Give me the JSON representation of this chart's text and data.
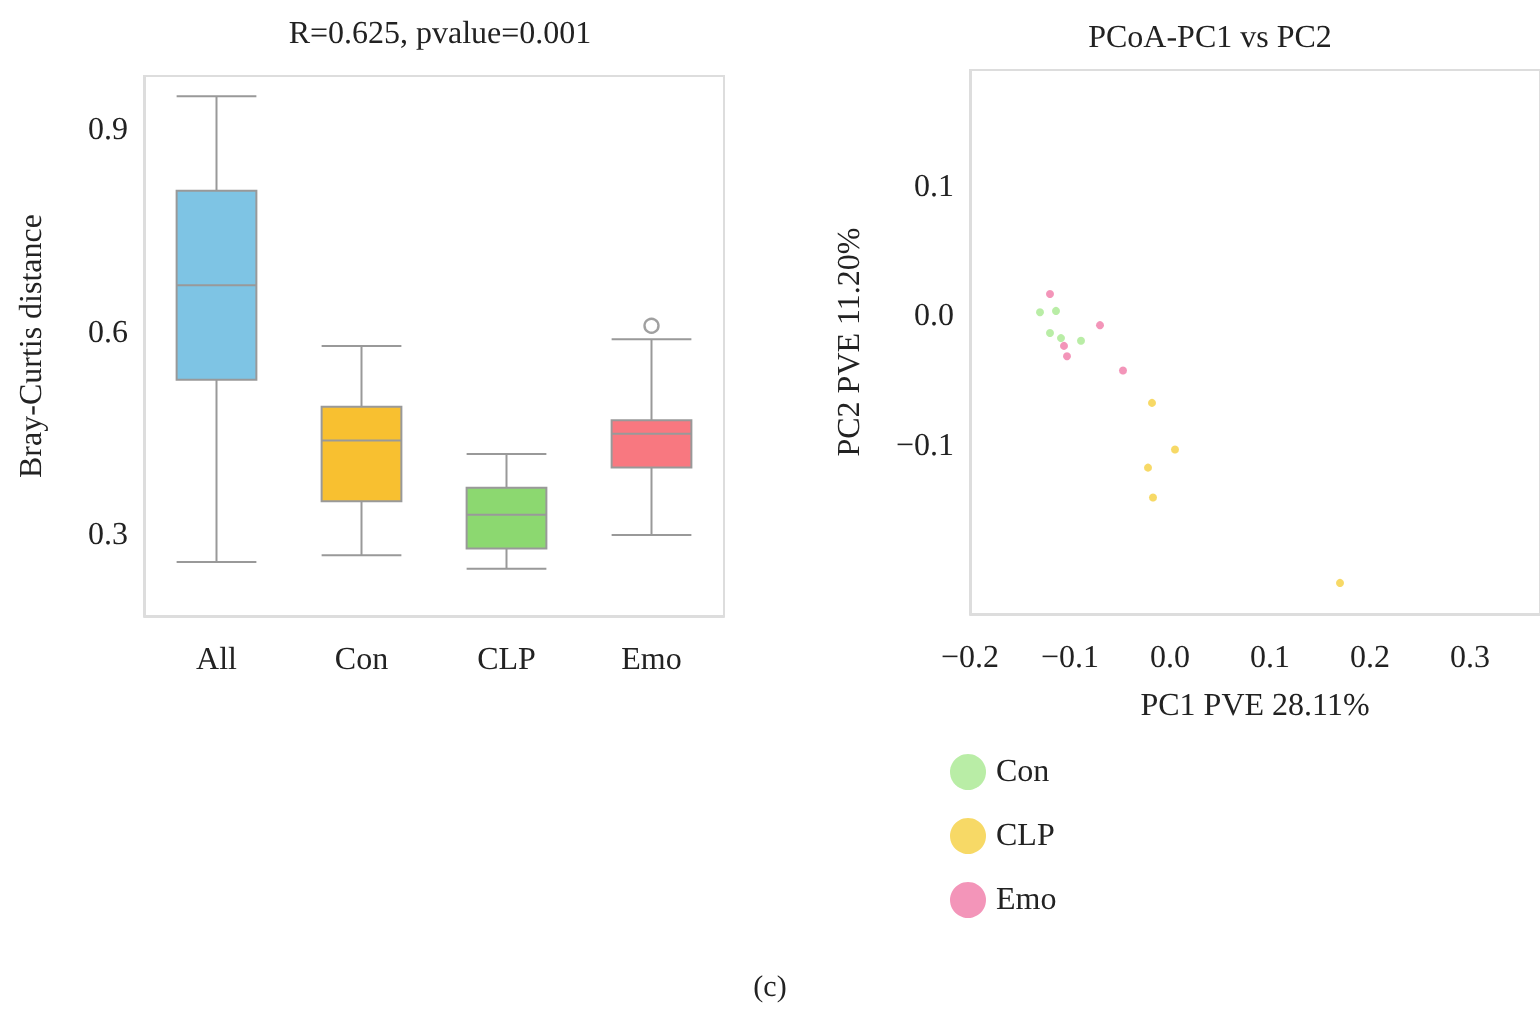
{
  "chart_data": [
    {
      "type": "box",
      "title": "R=0.625, pvalue=0.001",
      "ylabel": "Bray-Curtis distance",
      "categories": [
        "All",
        "Con",
        "CLP",
        "Emo"
      ],
      "colors": [
        "#7ec4e4",
        "#f8c030",
        "#8cd870",
        "#f87880"
      ],
      "boxes": [
        {
          "low": 0.26,
          "q1": 0.53,
          "median": 0.67,
          "q3": 0.81,
          "high": 0.95
        },
        {
          "low": 0.27,
          "q1": 0.35,
          "median": 0.44,
          "q3": 0.49,
          "high": 0.58
        },
        {
          "low": 0.25,
          "q1": 0.28,
          "median": 0.33,
          "q3": 0.37,
          "high": 0.42
        },
        {
          "low": 0.3,
          "q1": 0.4,
          "median": 0.45,
          "q3": 0.47,
          "high": 0.59,
          "outliers": [
            0.61
          ]
        }
      ],
      "ylim": [
        0.18,
        0.98
      ],
      "yticks": [
        0.3,
        0.6,
        0.9
      ],
      "grid": false
    },
    {
      "type": "scatter",
      "title": "PCoA-PC1 vs PC2",
      "xlabel": "PC1 PVE 28.11%",
      "ylabel": "PC2 PVE 11.20%",
      "series": [
        {
          "name": "Con",
          "color": "#a8e890",
          "x": [
            -0.13,
            -0.114,
            -0.12,
            -0.109,
            -0.089
          ],
          "values": [
            0.003,
            0.004,
            -0.013,
            -0.017,
            -0.019
          ]
        },
        {
          "name": "CLP",
          "color": "#f5d040",
          "x": [
            -0.018,
            0.005,
            -0.022,
            -0.017,
            0.17
          ],
          "values": [
            -0.067,
            -0.103,
            -0.117,
            -0.14,
            -0.206
          ]
        },
        {
          "name": "Emo",
          "color": "#f07aa8",
          "x": [
            -0.12,
            -0.106,
            -0.103,
            -0.07,
            -0.047
          ],
          "values": [
            0.017,
            -0.023,
            -0.031,
            -0.007,
            -0.042
          ]
        }
      ],
      "xlim": [
        -0.2,
        0.37
      ],
      "ylim": [
        -0.23,
        0.19
      ],
      "xticks": [
        {
          "value": -0.2,
          "label": "−0.2"
        },
        {
          "value": -0.1,
          "label": "−0.1"
        },
        {
          "value": 0,
          "label": "0.0"
        },
        0.1,
        0.2,
        0.3
      ],
      "yticks": [
        {
          "value": -0.1,
          "label": "−0.1"
        },
        {
          "value": 0,
          "label": "0.0"
        },
        0.1
      ],
      "grid": false,
      "legend": "bottom left",
      "marker": "circle",
      "annotations": [
        "(c)"
      ]
    }
  ]
}
